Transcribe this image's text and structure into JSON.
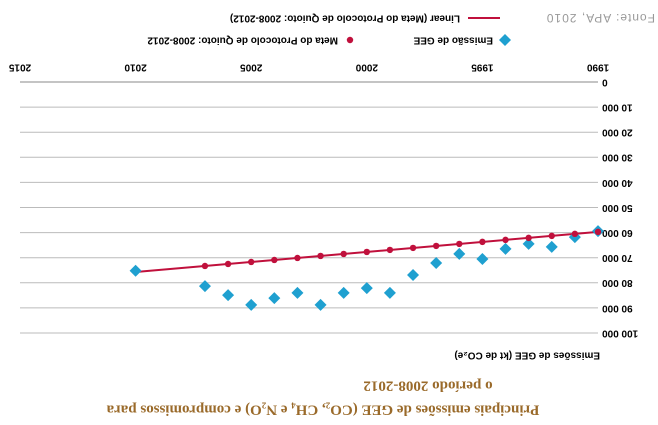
{
  "chart_data": {
    "type": "scatter",
    "title": [
      "Principais emissões de GEE  (CO₂, CH₄ e N₂O) e compromissos para",
      "o período 2008-2012"
    ],
    "ylabel": "Emissões de GEE (kt de CO₂e)",
    "source": "Fonte: APA, 2010",
    "xlim": [
      1990,
      2015
    ],
    "xticks": [
      1990,
      1995,
      2000,
      2005,
      2010,
      2015
    ],
    "ylim": [
      0,
      100000
    ],
    "yticks": [
      0,
      {
        "value": 10000,
        "label": "10 000"
      },
      {
        "value": 20000,
        "label": "20 000"
      },
      {
        "value": 30000,
        "label": "30 000"
      },
      {
        "value": 40000,
        "label": "40 000"
      },
      {
        "value": 50000,
        "label": "50 000"
      },
      {
        "value": 60000,
        "label": "60 000"
      },
      {
        "value": 70000,
        "label": "70 000"
      },
      {
        "value": 80000,
        "label": "80 000"
      },
      {
        "value": 90000,
        "label": "90 000"
      },
      {
        "value": 100000,
        "label": "100 000"
      }
    ],
    "grid": true,
    "series": [
      {
        "name": "Emissão de GEE",
        "color": "#1fa0d0",
        "marker": "diamond",
        "x": [
          1990,
          1991,
          1992,
          1993,
          1994,
          1995,
          1996,
          1997,
          1998,
          1999,
          2000,
          2001,
          2002,
          2003,
          2004,
          2005,
          2006,
          2007,
          2010
        ],
        "values": [
          59400,
          61800,
          65700,
          64500,
          66500,
          70500,
          68500,
          72100,
          76900,
          84000,
          82100,
          84000,
          88800,
          84000,
          86100,
          88800,
          84900,
          81300,
          75200
        ]
      },
      {
        "name": "Meta do Protocolo de Quioto: 2008-2012",
        "color": "#c0103c",
        "marker": "circle",
        "x": [
          1990,
          1991,
          1992,
          1993,
          1994,
          1995,
          1996,
          1997,
          1998,
          1999,
          2000,
          2001,
          2002,
          2003,
          2004,
          2005,
          2006,
          2007
        ],
        "values": [
          59700,
          60500,
          61300,
          62100,
          62900,
          63700,
          64500,
          65300,
          66100,
          66900,
          67700,
          68500,
          69300,
          70100,
          70900,
          71700,
          72500,
          73300
        ]
      },
      {
        "name": "Linear (Meta do Protocolo de Quioto: 2008-2012)",
        "color": "#c0103c",
        "marker": "line",
        "x": [
          1990,
          2010
        ],
        "values": [
          59700,
          75700
        ]
      }
    ]
  }
}
